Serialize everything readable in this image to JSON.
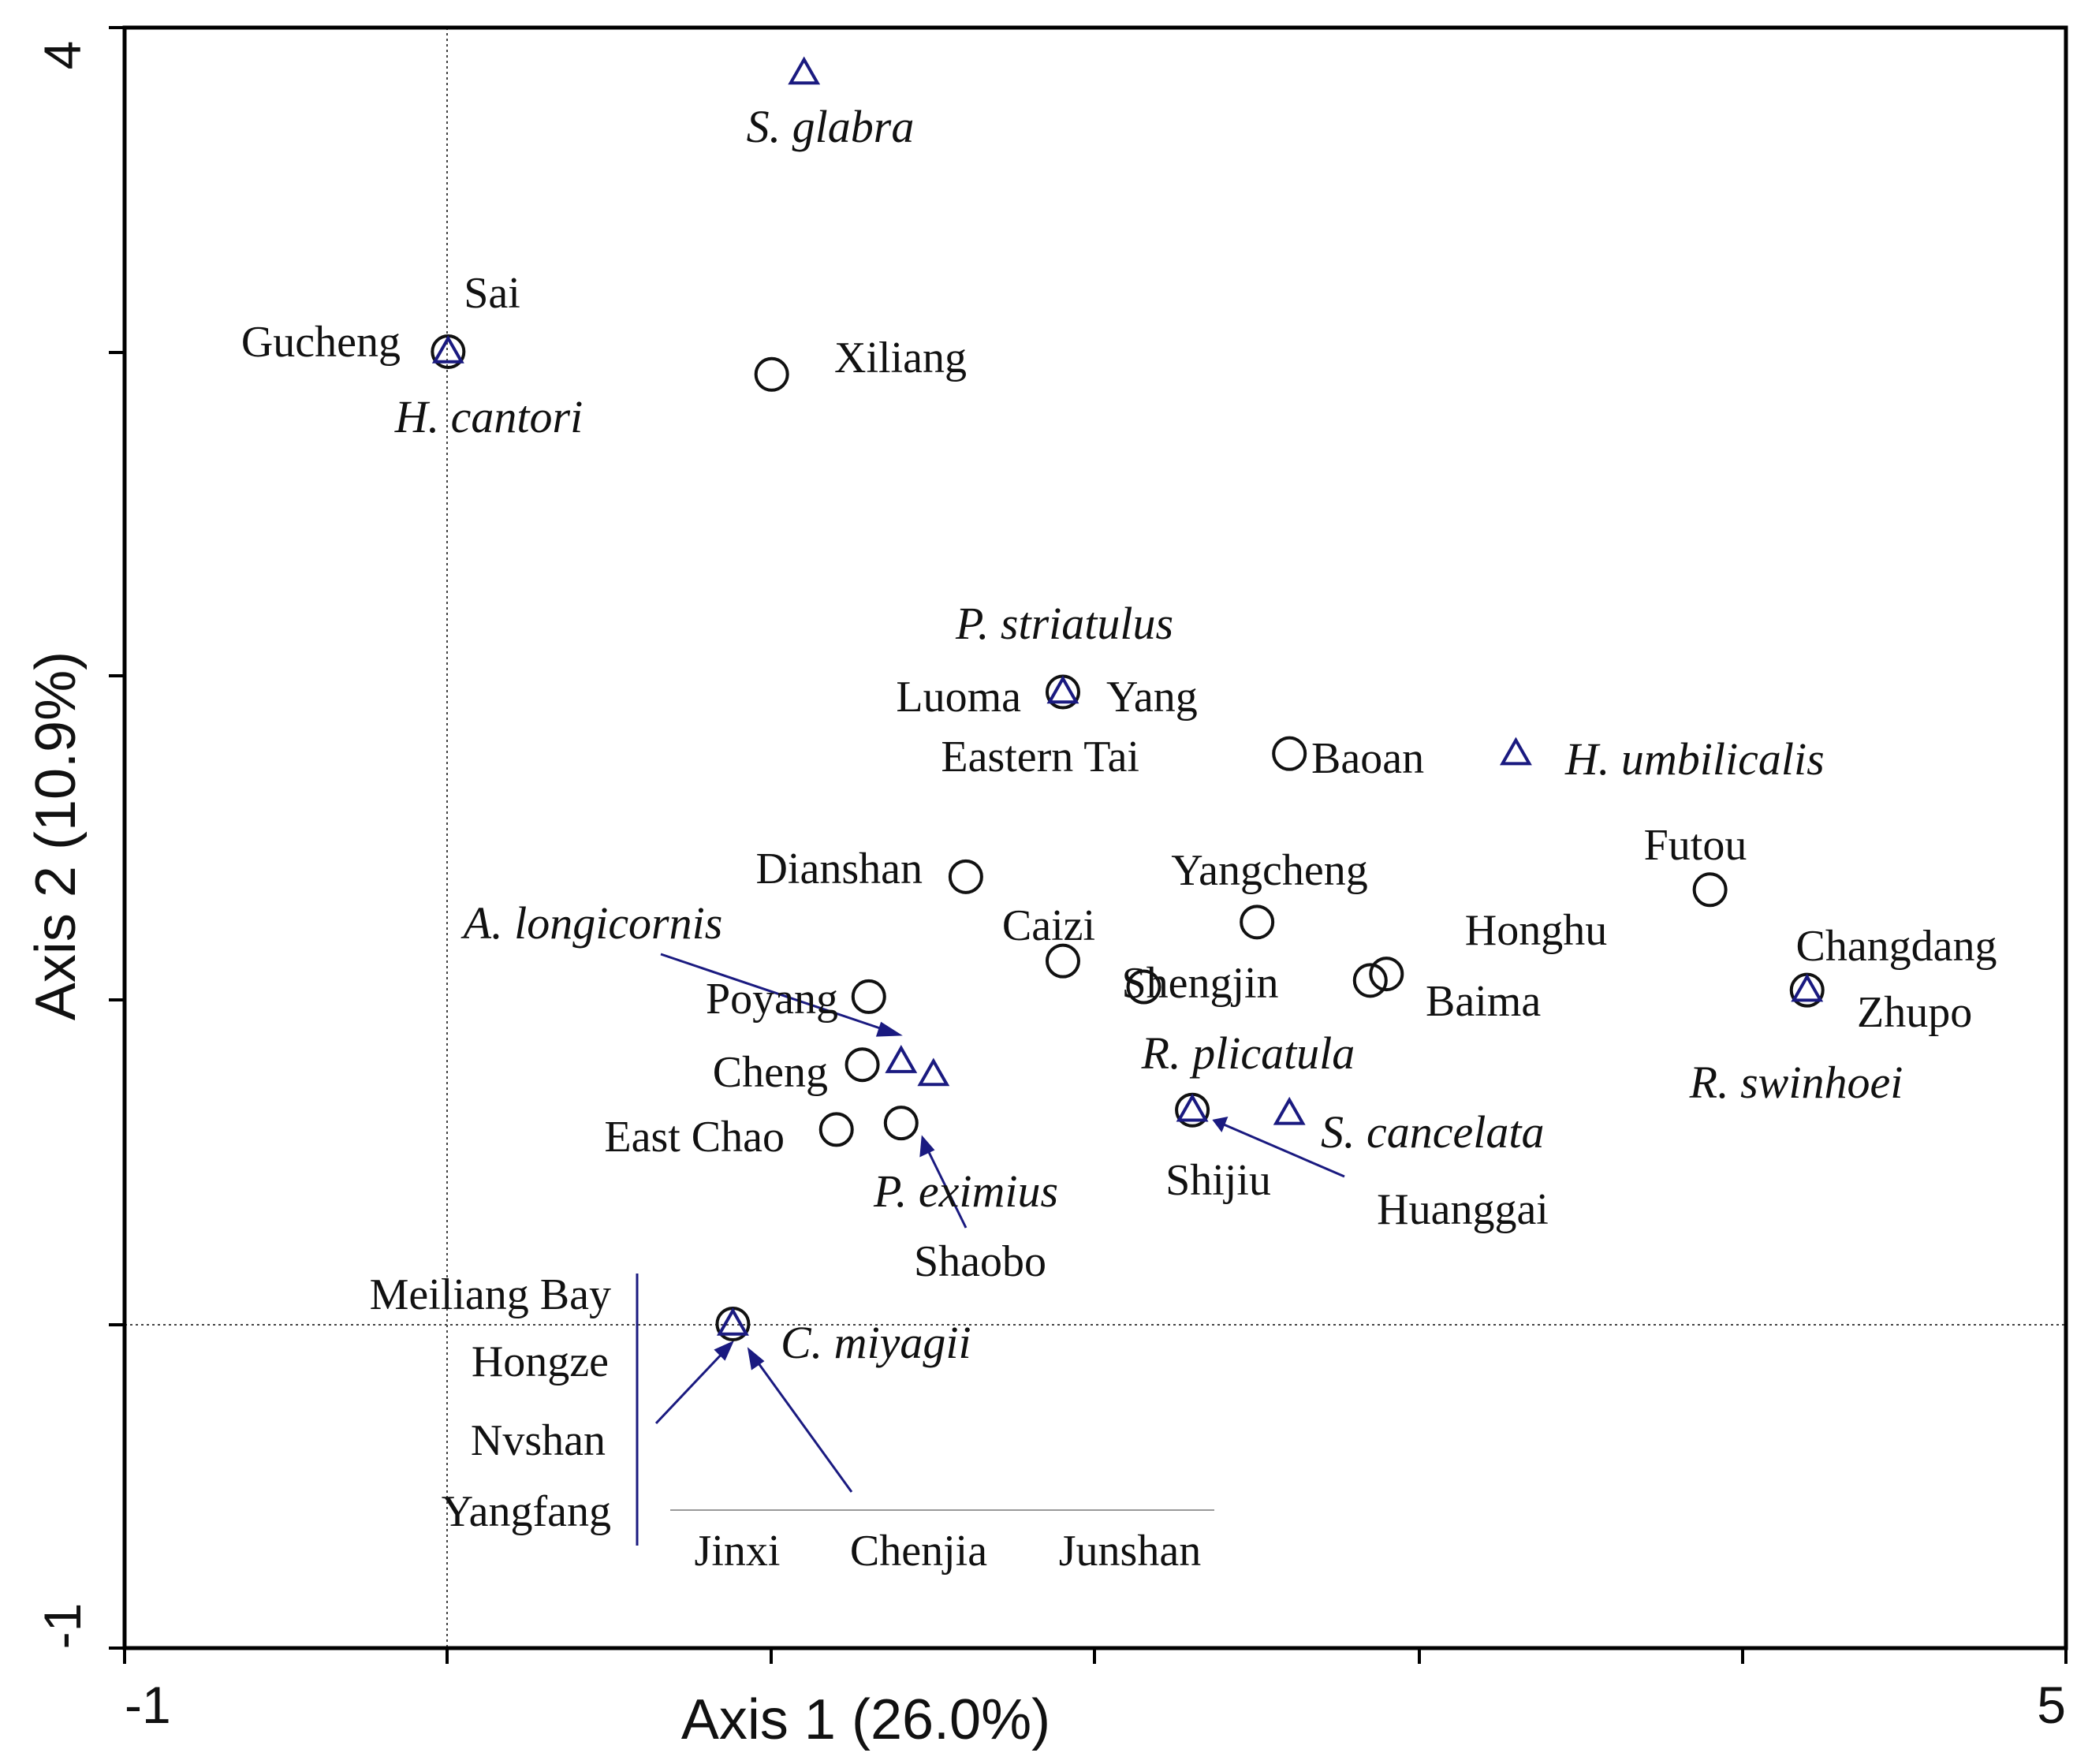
{
  "chart_data": {
    "type": "scatter",
    "title": "",
    "xlabel": "Axis 1 (26.0%)",
    "ylabel": "Axis 2 (10.9%)",
    "xlim": [
      -1,
      5
    ],
    "ylim": [
      -1,
      4
    ],
    "x_tick_labels": [
      "-1",
      "5"
    ],
    "y_tick_labels": [
      "4",
      "-1"
    ],
    "legend": "none",
    "colors": {
      "site": "#111111",
      "species": "#1a1a80"
    },
    "sites": [
      {
        "name": "Sai + Gucheng",
        "x": 0.0,
        "y": 3.0
      },
      {
        "name": "Xiliang",
        "x": 1.0,
        "y": 2.93
      },
      {
        "name": "Luoma + Yang + Eastern Tai",
        "x": 1.9,
        "y": 1.95
      },
      {
        "name": "Baoan",
        "x": 2.6,
        "y": 1.76
      },
      {
        "name": "Dianshan",
        "x": 1.6,
        "y": 1.38
      },
      {
        "name": "Yangcheng",
        "x": 2.5,
        "y": 1.24
      },
      {
        "name": "Caizi",
        "x": 1.9,
        "y": 1.12
      },
      {
        "name": "Shengjin",
        "x": 2.15,
        "y": 1.04
      },
      {
        "name": "Honghu",
        "x": 2.9,
        "y": 1.08
      },
      {
        "name": "Baima",
        "x": 2.85,
        "y": 1.06
      },
      {
        "name": "Futou",
        "x": 3.9,
        "y": 1.34
      },
      {
        "name": "Changdang + Zhupo",
        "x": 4.2,
        "y": 1.03
      },
      {
        "name": "Poyang",
        "x": 1.3,
        "y": 1.01
      },
      {
        "name": "Cheng",
        "x": 1.28,
        "y": 0.8
      },
      {
        "name": "East Chao",
        "x": 1.2,
        "y": 0.6
      },
      {
        "name": "Shaobo",
        "x": 1.4,
        "y": 0.62
      },
      {
        "name": "Shijiu",
        "x": 2.3,
        "y": 0.66
      },
      {
        "name": "Meiliang Bay + Hongze + Nvshan + Yangfang + Jinxi + Chenjia + Junshan",
        "x": 0.88,
        "y": 0.0
      }
    ],
    "species": [
      {
        "name": "S. glabra",
        "x": 1.1,
        "y": 3.86
      },
      {
        "name": "H. cantori",
        "x": 0.0,
        "y": 3.0
      },
      {
        "name": "P. striatulus",
        "x": 1.9,
        "y": 1.95
      },
      {
        "name": "H. umbilicalis",
        "x": 3.3,
        "y": 1.76
      },
      {
        "name": "A. longicornis",
        "x": 1.4,
        "y": 0.81
      },
      {
        "name": "P. eximius",
        "x": 1.5,
        "y": 0.77
      },
      {
        "name": "R. plicatula",
        "x": 2.3,
        "y": 0.66
      },
      {
        "name": "S. cancelata",
        "x": 2.6,
        "y": 0.65
      },
      {
        "name": "R. swinhoei",
        "x": 4.2,
        "y": 1.03
      },
      {
        "name": "C. miyagii",
        "x": 0.88,
        "y": 0.0
      }
    ],
    "text_labels": [
      "S. glabra",
      "Sai",
      "Gucheng",
      "H. cantori",
      "Xiliang",
      "P. striatulus",
      "Luoma",
      "Yang",
      "Eastern Tai",
      "Baoan",
      "H. umbilicalis",
      "Dianshan",
      "Yangcheng",
      "Futou",
      "A. longicornis",
      "Caizi",
      "Honghu",
      "Changdang",
      "Shengjin",
      "Poyang",
      "Baima",
      "Zhupo",
      "R. plicatula",
      "Cheng",
      "R. swinhoei",
      "East Chao",
      "S. cancelata",
      "P. eximius",
      "Shijiu",
      "Huanggai",
      "Shaobo",
      "Meiliang Bay",
      "C. miyagii",
      "Hongze",
      "Nvshan",
      "Yangfang",
      "Jinxi",
      "Chenjia",
      "Junshan"
    ]
  }
}
